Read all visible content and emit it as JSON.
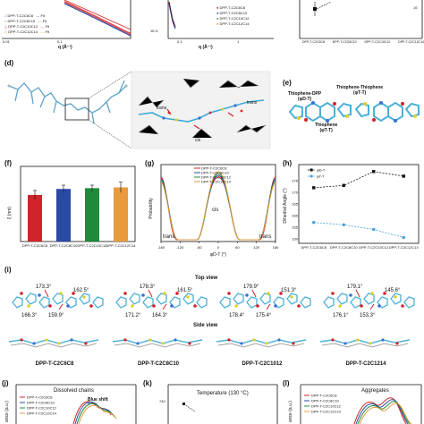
{
  "panel_labels": {
    "d": "(d)",
    "e": "(e)",
    "f": "(f)",
    "g": "(g)",
    "h": "(h)",
    "i": "(i)",
    "j": "(j)",
    "k": "(k)",
    "l": "(l)"
  },
  "top_left": {
    "legend": [
      "DPP-T-C2C6C8",
      "DPP-T-C2C8C10",
      "DPP-T-C2C10C12",
      "DPP-T-C2C12C14"
    ],
    "fit_label": "Fit",
    "xtick_left": "0.01",
    "xtick_right": "0.1",
    "xlabel": "q (Å⁻¹)"
  },
  "top_mid": {
    "ytick": "1E-5",
    "xtick_left": "0.1",
    "xtick_right": "1",
    "xlabel": "q (Å⁻¹)",
    "legend": [
      "DPP-T-C2C6C8",
      "DPP-T-C2C8C10",
      "DPP-T-C2C10C12",
      "DPP-T-C2C12C14"
    ]
  },
  "top_right": {
    "ytick": "16",
    "categories": [
      "DPP-T-C2C6C8",
      "DPP-T-C2C8C10",
      "DPP-T-C2C10C12",
      "DPP-T-C2C12C14"
    ]
  },
  "d": {
    "trans_left": "trans",
    "trans_right": "trans",
    "cis": "cis"
  },
  "e": {
    "thiophene_dpp": "Thiophene-DPP",
    "phi_dt": "(φD-T)",
    "thiophene_thiophene": "Thiophene-Thiophene",
    "phi_tt1": "(φT-T)",
    "phi_tt2": "(φT-T)",
    "thiophene": "Thiophene"
  },
  "f": {
    "ylabel": "ξ (nm)",
    "categories": [
      "DPP-T-C2C6C8",
      "DPP-T-C2C8C10",
      "DPP-T-C2C10C12",
      "DPP-T-C2C12C14"
    ]
  },
  "g": {
    "ylabel": "Probability",
    "xlabel": "φD-T (°)",
    "legend": [
      "DPP-T-C2C6C8",
      "DPP-T-C2C8C10",
      "DPP-T-C2C10C12",
      "DPP-T-C2C12C14"
    ],
    "xticks": [
      "-180",
      "-120",
      "-60",
      "0",
      "60",
      "120",
      "180"
    ],
    "cis": "cis",
    "trans_left": "trans",
    "trans_right": "trans"
  },
  "h": {
    "ylabel": "Dihedral Angle (°)",
    "legend": [
      "φD-T",
      "φT-T"
    ],
    "categories": [
      "DPP-T-C2C6C8",
      "DPP-T-C2C8C10",
      "DPP-T-C2C10C12",
      "DPP-T-C2C12C14"
    ],
    "yticks": [
      "175",
      "170",
      "165",
      "160",
      "155",
      "150"
    ]
  },
  "i": {
    "top_view": "Top view",
    "side_view": "Side view",
    "molecules": [
      {
        "name": "DPP-T-C2C6C8",
        "a1": "173.3°",
        "a2": "162.5°",
        "a3": "166.3°",
        "a4": "159.9°"
      },
      {
        "name": "DPP-T-C2C8C10",
        "a1": "178.3°",
        "a2": "161.5°",
        "a3": "171.2°",
        "a4": "164.3°"
      },
      {
        "name": "DPP-T-C2C1012",
        "a1": "179.9°",
        "a2": "151.3°",
        "a3": "178.4°",
        "a4": "175.4°"
      },
      {
        "name": "DPP-T-C2C1214",
        "a1": "179.1°",
        "a2": "145.6°",
        "a3": "176.1°",
        "a4": "153.3°"
      }
    ]
  },
  "j": {
    "title": "Dissolved chains",
    "annotation": "Blue shift",
    "ylabel": "ance (a.u.)",
    "legend": [
      "DPP-T-C2C6C8",
      "DPP-T-C2C8C10",
      "DPP-T-C2C10C12",
      "DPP-T-C2C12C14"
    ]
  },
  "k": {
    "title": "Temperature (130 °C)",
    "ytick": "740"
  },
  "l": {
    "title": "Aggregates",
    "ylabel": "ance (a.u.)",
    "legend": [
      "DPP-T-C2C6C8",
      "DPP-T-C2C8C10",
      "DPP-T-C2C10C12",
      "DPP-T-C2C12C14"
    ]
  },
  "colors": {
    "red": "#d0232a",
    "blue": "#2b4aa3",
    "green": "#1f8a3a",
    "orange": "#e89a3c",
    "black": "#111111",
    "grey": "#9a9a9a"
  },
  "chart_data": [
    {
      "type": "bar",
      "panel": "f",
      "categories": [
        "DPP-T-C2C6C8",
        "DPP-T-C2C8C10",
        "DPP-T-C2C10C12",
        "DPP-T-C2C12C14"
      ],
      "values": [
        3.1,
        3.5,
        3.55,
        3.6
      ],
      "errors": [
        0.3,
        0.25,
        0.2,
        0.35
      ],
      "ylim": [
        0,
        5
      ]
    },
    {
      "type": "line",
      "panel": "h",
      "categories": [
        "DPP-T-C2C6C8",
        "DPP-T-C2C8C10",
        "DPP-T-C2C10C12",
        "DPP-T-C2C12C14"
      ],
      "series": [
        {
          "name": "φD-T",
          "values": [
            172,
            173,
            179,
            177
          ]
        },
        {
          "name": "φT-T",
          "values": [
            157,
            156,
            154,
            150.5
          ]
        }
      ],
      "ylim": [
        148,
        182
      ]
    }
  ]
}
